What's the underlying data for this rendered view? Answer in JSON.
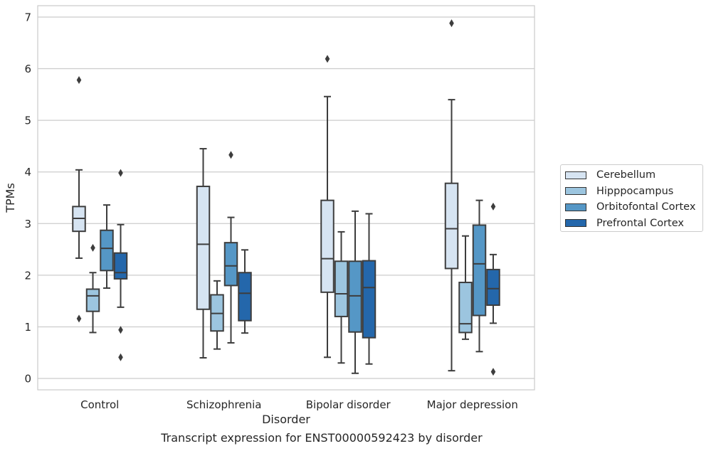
{
  "chart_data": {
    "type": "box",
    "xlabel": "Disorder",
    "ylabel": "TPMs",
    "ylim": [
      -0.22,
      7.22
    ],
    "yticks": [
      0,
      1,
      2,
      3,
      4,
      5,
      6,
      7
    ],
    "categories": [
      "Control",
      "Schizophrenia",
      "Bipolar disorder",
      "Major depression"
    ],
    "grid": "horizontal",
    "legend_position": "right",
    "series": [
      {
        "name": "Cerebellum",
        "color": "#d6e4f2",
        "boxes": [
          {
            "whisker_low": 2.33,
            "q1": 2.85,
            "median": 3.1,
            "q3": 3.33,
            "whisker_high": 4.04,
            "outliers": [
              5.78,
              1.16
            ]
          },
          {
            "whisker_low": 0.4,
            "q1": 1.34,
            "median": 2.6,
            "q3": 3.72,
            "whisker_high": 4.45,
            "outliers": []
          },
          {
            "whisker_low": 0.41,
            "q1": 1.67,
            "median": 2.32,
            "q3": 3.45,
            "whisker_high": 5.46,
            "outliers": [
              6.19
            ]
          },
          {
            "whisker_low": 0.15,
            "q1": 2.13,
            "median": 2.9,
            "q3": 3.78,
            "whisker_high": 5.4,
            "outliers": [
              6.88
            ]
          }
        ]
      },
      {
        "name": "Hipppocampus",
        "color": "#9cc5df",
        "boxes": [
          {
            "whisker_low": 0.89,
            "q1": 1.3,
            "median": 1.6,
            "q3": 1.73,
            "whisker_high": 2.05,
            "outliers": [
              2.53
            ]
          },
          {
            "whisker_low": 0.57,
            "q1": 0.92,
            "median": 1.26,
            "q3": 1.62,
            "whisker_high": 1.89,
            "outliers": []
          },
          {
            "whisker_low": 0.3,
            "q1": 1.2,
            "median": 1.64,
            "q3": 2.27,
            "whisker_high": 2.84,
            "outliers": []
          },
          {
            "whisker_low": 0.76,
            "q1": 0.89,
            "median": 1.06,
            "q3": 1.86,
            "whisker_high": 2.76,
            "outliers": []
          }
        ]
      },
      {
        "name": "Orbitofontal Cortex",
        "color": "#5597c6",
        "boxes": [
          {
            "whisker_low": 1.75,
            "q1": 2.09,
            "median": 2.52,
            "q3": 2.87,
            "whisker_high": 3.36,
            "outliers": []
          },
          {
            "whisker_low": 0.69,
            "q1": 1.8,
            "median": 2.18,
            "q3": 2.63,
            "whisker_high": 3.12,
            "outliers": [
              4.33
            ]
          },
          {
            "whisker_low": 0.1,
            "q1": 0.9,
            "median": 1.6,
            "q3": 2.27,
            "whisker_high": 3.24,
            "outliers": []
          },
          {
            "whisker_low": 0.52,
            "q1": 1.22,
            "median": 2.22,
            "q3": 2.97,
            "whisker_high": 3.45,
            "outliers": []
          }
        ]
      },
      {
        "name": "Prefrontal Cortex",
        "color": "#2467ab",
        "boxes": [
          {
            "whisker_low": 1.38,
            "q1": 1.93,
            "median": 2.05,
            "q3": 2.43,
            "whisker_high": 2.98,
            "outliers": [
              3.98,
              0.94,
              0.41
            ]
          },
          {
            "whisker_low": 0.88,
            "q1": 1.12,
            "median": 1.65,
            "q3": 2.05,
            "whisker_high": 2.49,
            "outliers": []
          },
          {
            "whisker_low": 0.28,
            "q1": 0.79,
            "median": 1.76,
            "q3": 2.28,
            "whisker_high": 3.19,
            "outliers": []
          },
          {
            "whisker_low": 1.07,
            "q1": 1.42,
            "median": 1.74,
            "q3": 2.11,
            "whisker_high": 2.4,
            "outliers": [
              3.33,
              0.13
            ]
          }
        ]
      }
    ]
  },
  "caption": "Transcript expression for ENST00000592423 by disorder"
}
